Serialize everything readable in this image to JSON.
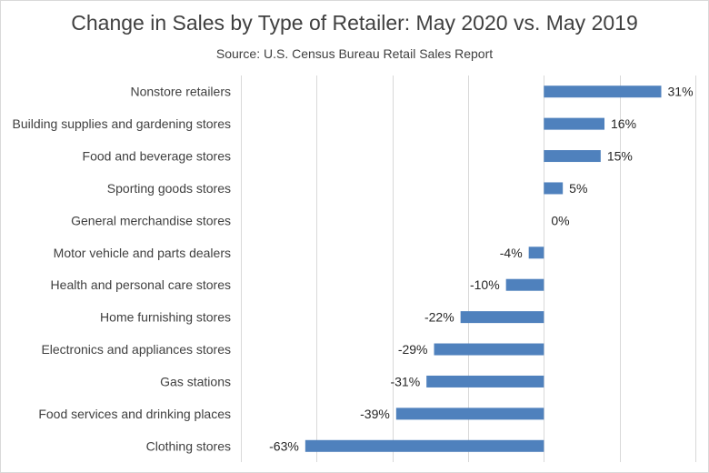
{
  "chart_data": {
    "type": "bar",
    "orientation": "horizontal",
    "title": "Change in Sales by Type of Retailer: May 2020 vs. May 2019",
    "subtitle": "Source: U.S. Census Bureau Retail Sales Report",
    "categories": [
      "Nonstore retailers",
      "Building supplies and gardening stores",
      "Food and beverage stores",
      "Sporting goods stores",
      "General merchandise stores",
      "Motor vehicle and parts dealers",
      "Health and personal care stores",
      "Home furnishing stores",
      "Electronics and appliances stores",
      "Gas stations",
      "Food services and drinking places",
      "Clothing stores"
    ],
    "values": [
      31,
      16,
      15,
      5,
      0,
      -4,
      -10,
      -22,
      -29,
      -31,
      -39,
      -63
    ],
    "data_labels": [
      "31%",
      "16%",
      "15%",
      "5%",
      "0%",
      "-4%",
      "-10%",
      "-22%",
      "-29%",
      "-31%",
      "-39%",
      "-63%"
    ],
    "xlim": [
      -80,
      40
    ],
    "grid": "vertical",
    "legend": "none",
    "bar_color": "#4f81bd"
  }
}
